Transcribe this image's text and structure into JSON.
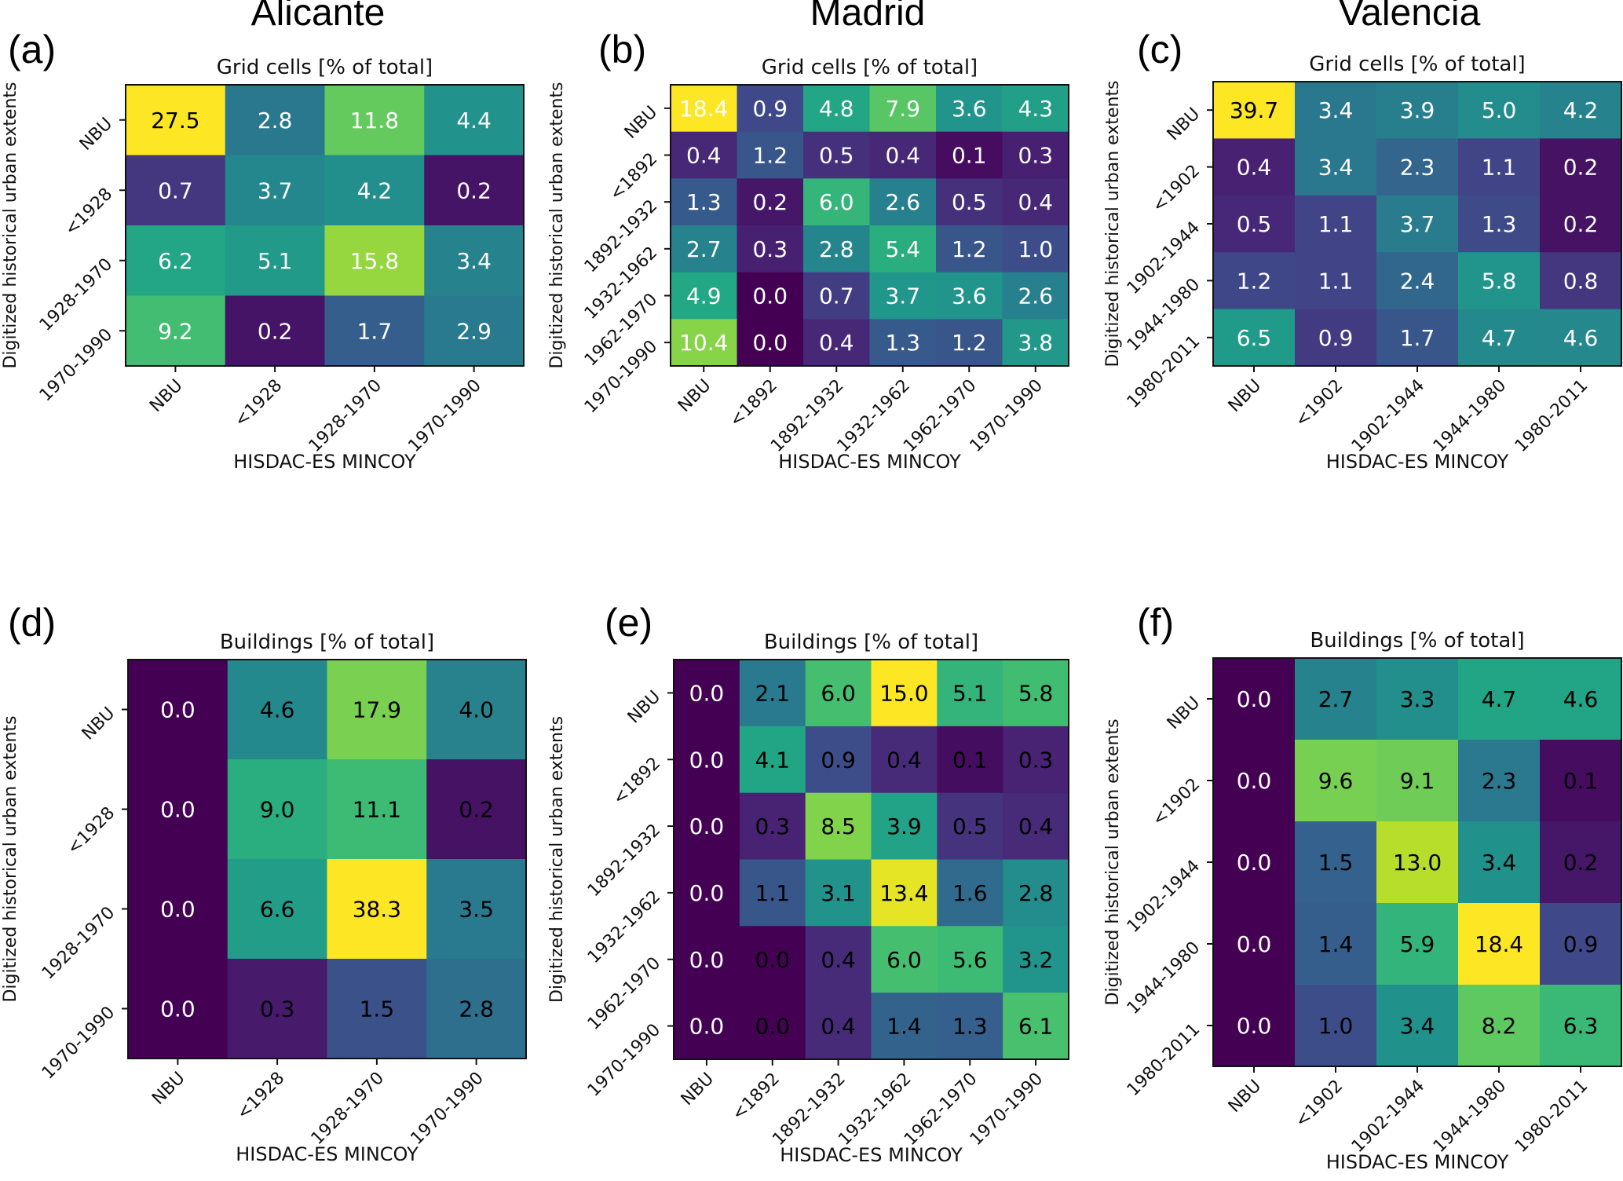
{
  "figure": {
    "cities": [
      "Alicante",
      "Madrid",
      "Valencia"
    ],
    "xlabel": "HISDAC-ES MINCOY",
    "ylabel": "Digitized historical urban extents"
  },
  "chart_data": [
    {
      "type": "heatmap",
      "panel": "(a)",
      "city": "Alicante",
      "title": "Grid cells [% of total]",
      "xlabel": "HISDAC-ES MINCOY",
      "ylabel": "Digitized historical urban extents",
      "x_categories": [
        "NBU",
        "<1928",
        "1928-1970",
        "1970-1990"
      ],
      "y_categories": [
        "NBU",
        "<1928",
        "1928-1970",
        "1970-1990"
      ],
      "values": [
        [
          27.5,
          2.8,
          11.8,
          4.4
        ],
        [
          0.7,
          3.7,
          4.2,
          0.2
        ],
        [
          6.2,
          5.1,
          15.8,
          3.4
        ],
        [
          9.2,
          0.2,
          1.7,
          2.9
        ]
      ],
      "colormap": "viridis",
      "annotation_color": "white-except-max"
    },
    {
      "type": "heatmap",
      "panel": "(b)",
      "city": "Madrid",
      "title": "Grid cells [% of total]",
      "xlabel": "HISDAC-ES MINCOY",
      "ylabel": "Digitized historical urban extents",
      "x_categories": [
        "NBU",
        "<1892",
        "1892-1932",
        "1932-1962",
        "1962-1970",
        "1970-1990"
      ],
      "y_categories": [
        "NBU",
        "<1892",
        "1892-1932",
        "1932-1962",
        "1962-1970",
        "1970-1990"
      ],
      "values": [
        [
          18.4,
          0.9,
          4.8,
          7.9,
          3.6,
          4.3
        ],
        [
          0.4,
          1.2,
          0.5,
          0.4,
          0.1,
          0.3
        ],
        [
          1.3,
          0.2,
          6.0,
          2.6,
          0.5,
          0.4
        ],
        [
          2.7,
          0.3,
          2.8,
          5.4,
          1.2,
          1.0
        ],
        [
          4.9,
          0.0,
          0.7,
          3.7,
          3.6,
          2.6
        ],
        [
          10.4,
          0.0,
          0.4,
          1.3,
          1.2,
          3.8
        ]
      ],
      "colormap": "viridis",
      "annotation_color": "white"
    },
    {
      "type": "heatmap",
      "panel": "(c)",
      "city": "Valencia",
      "title": "Grid cells [% of total]",
      "xlabel": "HISDAC-ES MINCOY",
      "ylabel": "Digitized historical urban extents",
      "x_categories": [
        "NBU",
        "<1902",
        "1902-1944",
        "1944-1980",
        "1980-2011"
      ],
      "y_categories": [
        "NBU",
        "<1902",
        "1902-1944",
        "1944-1980",
        "1980-2011"
      ],
      "values": [
        [
          39.7,
          3.4,
          3.9,
          5.0,
          4.2
        ],
        [
          0.4,
          3.4,
          2.3,
          1.1,
          0.2
        ],
        [
          0.5,
          1.1,
          3.7,
          1.3,
          0.2
        ],
        [
          1.2,
          1.1,
          2.4,
          5.8,
          0.8
        ],
        [
          6.5,
          0.9,
          1.7,
          4.7,
          4.6
        ]
      ],
      "colormap": "viridis",
      "annotation_color": "white-except-max"
    },
    {
      "type": "heatmap",
      "panel": "(d)",
      "city": "Alicante",
      "title": "Buildings [% of total]",
      "xlabel": "HISDAC-ES MINCOY",
      "ylabel": "Digitized historical urban extents",
      "x_categories": [
        "NBU",
        "<1928",
        "1928-1970",
        "1970-1990"
      ],
      "y_categories": [
        "NBU",
        "<1928",
        "1928-1970",
        "1970-1990"
      ],
      "values": [
        [
          0.0,
          4.6,
          17.9,
          4.0
        ],
        [
          0.0,
          9.0,
          11.1,
          0.2
        ],
        [
          0.0,
          6.6,
          38.3,
          3.5
        ],
        [
          0.0,
          0.3,
          1.5,
          2.8
        ]
      ],
      "colormap": "viridis",
      "annotation_color": "black-except-first-column"
    },
    {
      "type": "heatmap",
      "panel": "(e)",
      "city": "Madrid",
      "title": "Buildings [% of total]",
      "xlabel": "HISDAC-ES MINCOY",
      "ylabel": "Digitized historical urban extents",
      "x_categories": [
        "NBU",
        "<1892",
        "1892-1932",
        "1932-1962",
        "1962-1970",
        "1970-1990"
      ],
      "y_categories": [
        "NBU",
        "<1892",
        "1892-1932",
        "1932-1962",
        "1962-1970",
        "1970-1990"
      ],
      "values": [
        [
          0.0,
          2.1,
          6.0,
          15.0,
          5.1,
          5.8
        ],
        [
          0.0,
          4.1,
          0.9,
          0.4,
          0.1,
          0.3
        ],
        [
          0.0,
          0.3,
          8.5,
          3.9,
          0.5,
          0.4
        ],
        [
          0.0,
          1.1,
          3.1,
          13.4,
          1.6,
          2.8
        ],
        [
          0.0,
          0.0,
          0.4,
          6.0,
          5.6,
          3.2
        ],
        [
          0.0,
          0.0,
          0.4,
          1.4,
          1.3,
          6.1
        ]
      ],
      "colormap": "viridis",
      "annotation_color": "black-except-first-column"
    },
    {
      "type": "heatmap",
      "panel": "(f)",
      "city": "Valencia",
      "title": "Buildings [% of total]",
      "xlabel": "HISDAC-ES MINCOY",
      "ylabel": "Digitized historical urban extents",
      "x_categories": [
        "NBU",
        "<1902",
        "1902-1944",
        "1944-1980",
        "1980-2011"
      ],
      "y_categories": [
        "NBU",
        "<1902",
        "1902-1944",
        "1944-1980",
        "1980-2011"
      ],
      "values": [
        [
          0.0,
          2.7,
          3.3,
          4.7,
          4.6
        ],
        [
          0.0,
          9.6,
          9.1,
          2.3,
          0.1
        ],
        [
          0.0,
          1.5,
          13.0,
          3.4,
          0.2
        ],
        [
          0.0,
          1.4,
          5.9,
          18.4,
          0.9
        ],
        [
          0.0,
          1.0,
          3.4,
          8.2,
          6.3
        ]
      ],
      "colormap": "viridis",
      "annotation_color": "black-except-first-column"
    }
  ]
}
